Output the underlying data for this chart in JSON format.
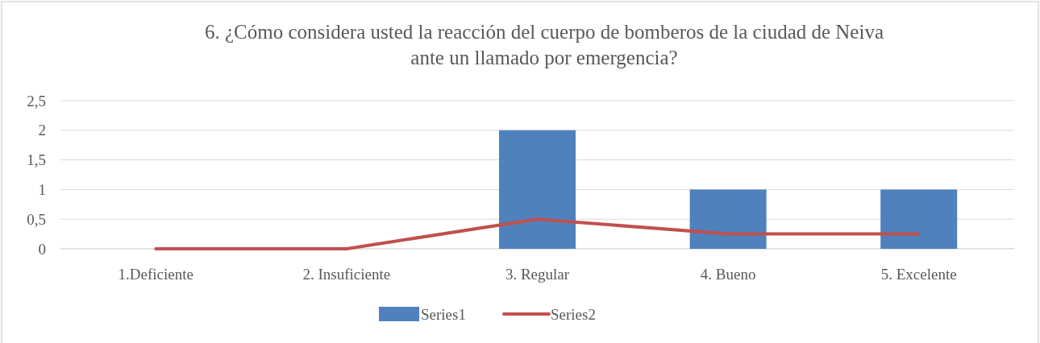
{
  "chart_data": {
    "type": "bar",
    "title": "6. ¿Cómo considera usted la reacción del cuerpo de bomberos de la ciudad de Neiva\nante un llamado por emergencia?",
    "categories": [
      "1.Deficiente",
      "2. Insuficiente",
      "3. Regular",
      "4. Bueno",
      "5. Excelente"
    ],
    "series": [
      {
        "name": "Series1",
        "color": "#4f81bd",
        "values": [
          0,
          0,
          2,
          1,
          1
        ]
      },
      {
        "name": "Series2",
        "type": "line",
        "color": "#c0504d",
        "values": [
          0,
          0,
          0.5,
          0.25,
          0.25
        ]
      }
    ],
    "ylim": [
      0,
      2.5
    ],
    "yticks": [
      0,
      {
        "value": 0.5,
        "label": "0,5"
      },
      1,
      {
        "value": 1.5,
        "label": "1,5"
      },
      2,
      {
        "value": 2.5,
        "label": "2,5"
      }
    ],
    "grid": "y",
    "legend": "bottom",
    "marker": "none",
    "line_style": "solid"
  }
}
